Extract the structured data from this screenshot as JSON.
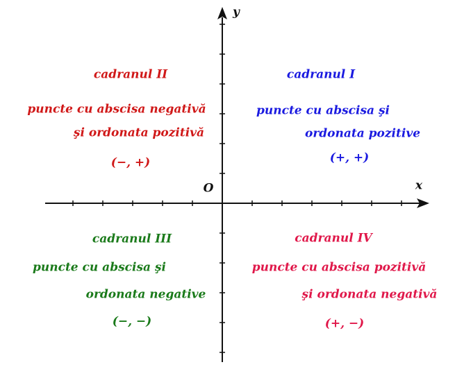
{
  "axes": {
    "x_label": "x",
    "y_label": "y",
    "origin_label": "O"
  },
  "quadrants": [
    {
      "title": "cadranul II",
      "lines": [
        "puncte cu abscisa negativă",
        "şi ordonata pozitivă"
      ],
      "signs": "(−, +)"
    },
    {
      "title": "cadranul I",
      "lines": [
        "puncte cu abscisa şi",
        "ordonata pozitive"
      ],
      "signs": "(+, +)"
    },
    {
      "title": "cadranul III",
      "lines": [
        "puncte cu abscisa şi",
        "ordonata negative"
      ],
      "signs": "(−, −)"
    },
    {
      "title": "cadranul IV",
      "lines": [
        "puncte cu abscisa pozitivă",
        "şi ordonata negativă"
      ],
      "signs": "(+, −)"
    }
  ]
}
